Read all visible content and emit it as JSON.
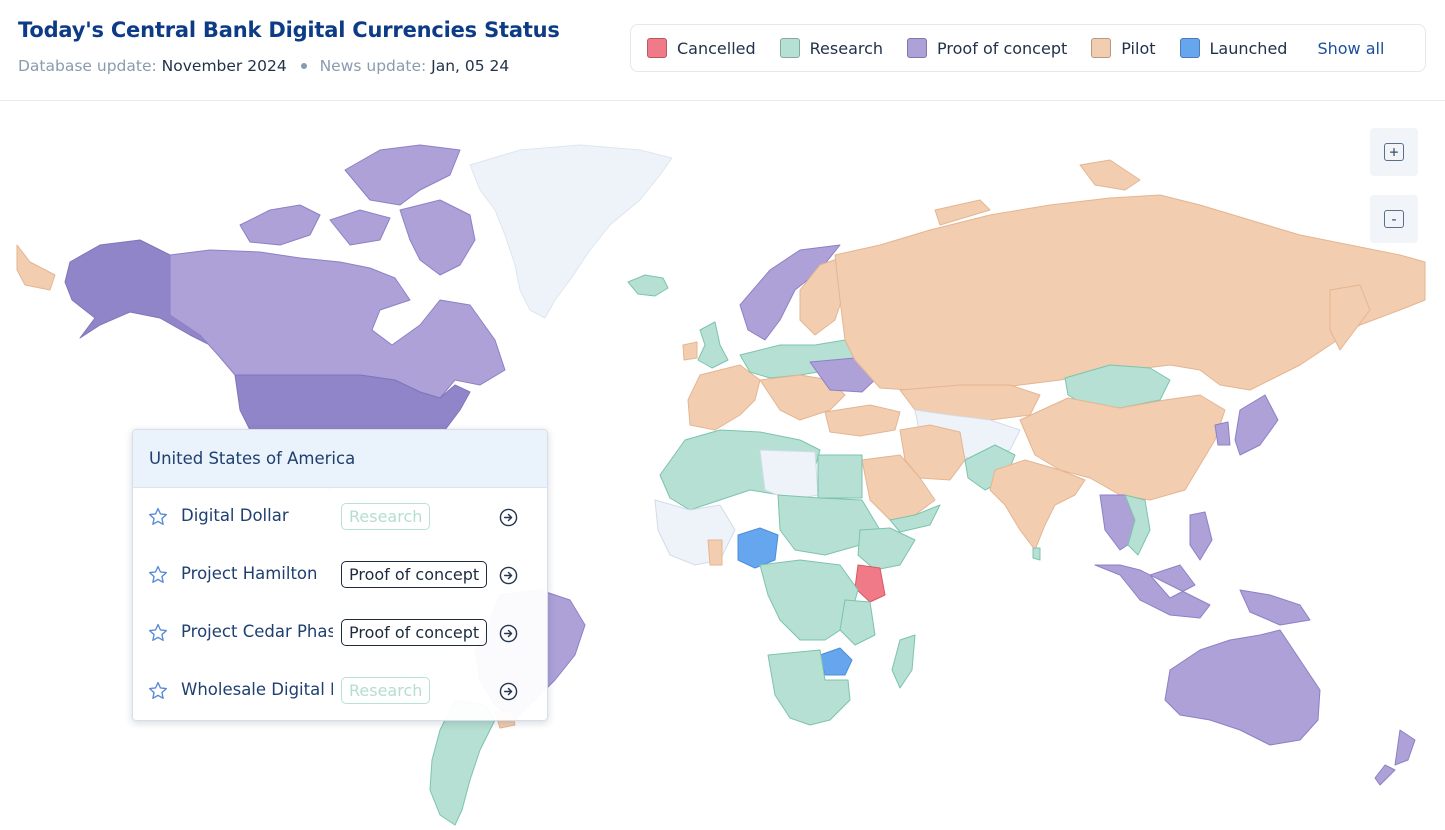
{
  "header": {
    "title": "Today's Central Bank Digital Currencies Status",
    "db_update_label": "Database update:",
    "db_update_value": "November 2024",
    "news_update_label": "News update:",
    "news_update_value": "Jan, 05 24"
  },
  "legend": {
    "items": [
      {
        "label": "Cancelled",
        "color": "#f07a87"
      },
      {
        "label": "Research",
        "color": "#b5e0d3"
      },
      {
        "label": "Proof of concept",
        "color": "#ada1d8"
      },
      {
        "label": "Pilot",
        "color": "#f2cdb0"
      },
      {
        "label": "Launched",
        "color": "#66a6ee"
      }
    ],
    "show_all": "Show all"
  },
  "zoom": {
    "in_icon": "plus-icon",
    "out_icon": "minus-icon",
    "in_glyph": "+",
    "out_glyph": "-"
  },
  "colors": {
    "none": "#eef3f9",
    "research": "#b5e0d3",
    "poc": "#ada1d8",
    "poc_dark": "#9185c9",
    "pilot": "#f2cdb0",
    "launched": "#66a6ee",
    "cancelled": "#f07a87"
  },
  "popup": {
    "country": "United States of America",
    "rows": [
      {
        "name": "Digital Dollar",
        "status": "Research"
      },
      {
        "name": "Project Hamilton",
        "status": "Proof of concept"
      },
      {
        "name": "Project Cedar Phase",
        "status": "Proof of concept"
      },
      {
        "name": "Wholesale Digital Dollar",
        "status": "Research"
      }
    ]
  }
}
